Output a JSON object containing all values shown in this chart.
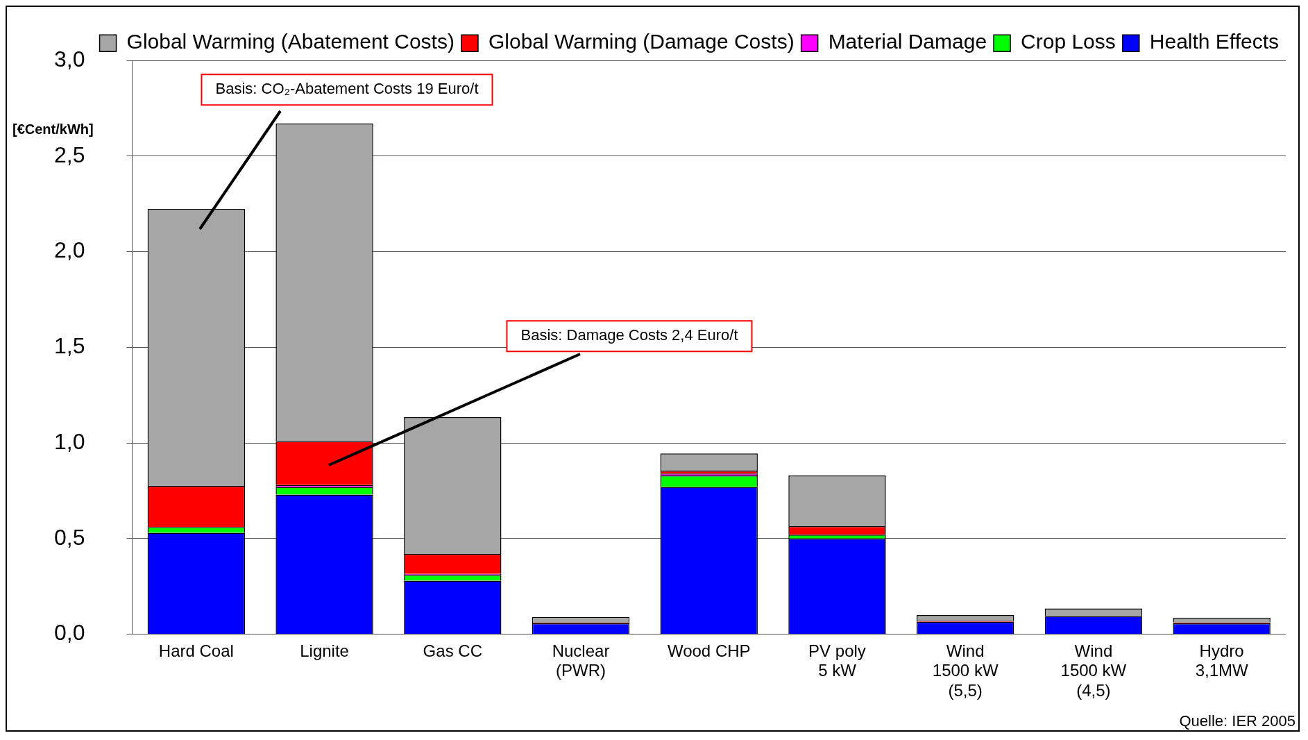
{
  "chart_data": {
    "type": "bar",
    "stacked": true,
    "ylabel": "[€Cent/kWh]",
    "categories": [
      "Hard Coal",
      "Lignite",
      "Gas CC",
      "Nuclear\n(PWR)",
      "Wood CHP",
      "PV poly\n5 kW",
      "Wind\n1500 kW\n(5,5)",
      "Wind\n1500 kW\n(4,5)",
      "Hydro\n3,1MW"
    ],
    "series": [
      {
        "name": "Health Effects",
        "color": "#0000ff",
        "values": [
          0.53,
          0.73,
          0.28,
          0.057,
          0.77,
          0.5,
          0.065,
          0.095,
          0.057
        ]
      },
      {
        "name": "Crop Loss",
        "color": "#00ff00",
        "values": [
          0.03,
          0.04,
          0.03,
          0,
          0.06,
          0.02,
          0,
          null,
          0
        ]
      },
      {
        "name": "Material Damage",
        "color": "#ff00ff",
        "values": [
          null,
          0.01,
          0.005,
          0,
          0.01,
          null,
          0,
          0,
          0
        ]
      },
      {
        "name": "Global Warming (Damage Costs)",
        "color": "#ff0000",
        "values": [
          0.215,
          0.23,
          0.105,
          0.003,
          0.015,
          0.045,
          0.005,
          null,
          0.005
        ]
      },
      {
        "name": "Global Warming (Abatement Costs)",
        "color": "#a6a6a6",
        "values": [
          1.45,
          1.66,
          0.715,
          0.03,
          0.09,
          0.265,
          0.03,
          0.04,
          0.025
        ]
      }
    ],
    "ylim": [
      0,
      3
    ],
    "yticks": [
      {
        "value": 0,
        "label": "0,0"
      },
      {
        "value": 0.5,
        "label": "0,5"
      },
      {
        "value": 1,
        "label": "1,0"
      },
      {
        "value": 1.5,
        "label": "1,5"
      },
      {
        "value": 2,
        "label": "2,0"
      },
      {
        "value": 2.5,
        "label": "2,5"
      },
      {
        "value": 3,
        "label": "3,0"
      }
    ],
    "grid": "y",
    "legend": "top right",
    "annotations": [
      "Basis: CO₂-Abatement Costs 19 Euro/t",
      "Basis: Damage Costs 2,4 Euro/t",
      "Quelle: IER 2005"
    ]
  }
}
